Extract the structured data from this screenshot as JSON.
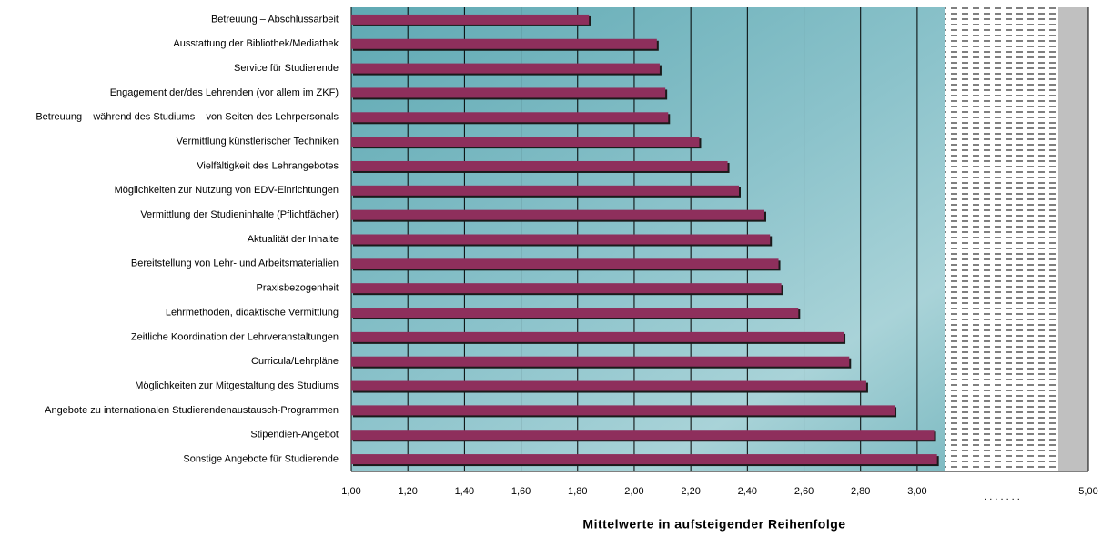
{
  "chart_data": {
    "type": "hbar",
    "x_label": "Mittelwerte in aufsteigender Reihenfolge",
    "categories": [
      "Betreuung – Abschlussarbeit",
      "Ausstattung der Bibliothek/Mediathek",
      "Service für Studierende",
      "Engagement der/des Lehrenden (vor allem im ZKF)",
      "Betreuung – während des Studiums – von Seiten des Lehrpersonals",
      "Vermittlung künstlerischer Techniken",
      "Vielfältigkeit des Lehrangebotes",
      "Möglichkeiten zur Nutzung von EDV-Einrichtungen",
      "Vermittlung der Studieninhalte (Pflichtfächer)",
      "Aktualität der Inhalte",
      "Bereitstellung von Lehr- und Arbeitsmaterialien",
      "Praxisbezogenheit",
      "Lehrmethoden, didaktische Vermittlung",
      "Zeitliche Koordination der Lehrveranstaltungen",
      "Curricula/Lehrpläne",
      "Möglichkeiten zur Mitgestaltung des Studiums",
      "Angebote zu internationalen Studierendenaustausch-Programmen",
      "Stipendien-Angebot",
      "Sonstige Angebote für Studierende"
    ],
    "values": [
      1.84,
      2.08,
      2.09,
      2.11,
      2.12,
      2.23,
      2.33,
      2.37,
      2.46,
      2.48,
      2.51,
      2.52,
      2.58,
      2.74,
      2.76,
      2.82,
      2.92,
      3.06,
      3.07
    ],
    "color": "#8e2f5c",
    "xlim": [
      1,
      5
    ],
    "axis_break": [
      3.1,
      4.9
    ],
    "break_label": ". . . . . . .",
    "xticks": [
      {
        "value": 1.0,
        "label": "1,00"
      },
      {
        "value": 1.2,
        "label": "1,20"
      },
      {
        "value": 1.4,
        "label": "1,40"
      },
      {
        "value": 1.6,
        "label": "1,60"
      },
      {
        "value": 1.8,
        "label": "1,80"
      },
      {
        "value": 2.0,
        "label": "2,00"
      },
      {
        "value": 2.2,
        "label": "2,20"
      },
      {
        "value": 2.4,
        "label": "2,40"
      },
      {
        "value": 2.6,
        "label": "2,60"
      },
      {
        "value": 2.8,
        "label": "2,80"
      },
      {
        "value": 3.0,
        "label": "3,00"
      },
      {
        "value": 5.0,
        "label": "5,00"
      }
    ],
    "grid": true
  }
}
